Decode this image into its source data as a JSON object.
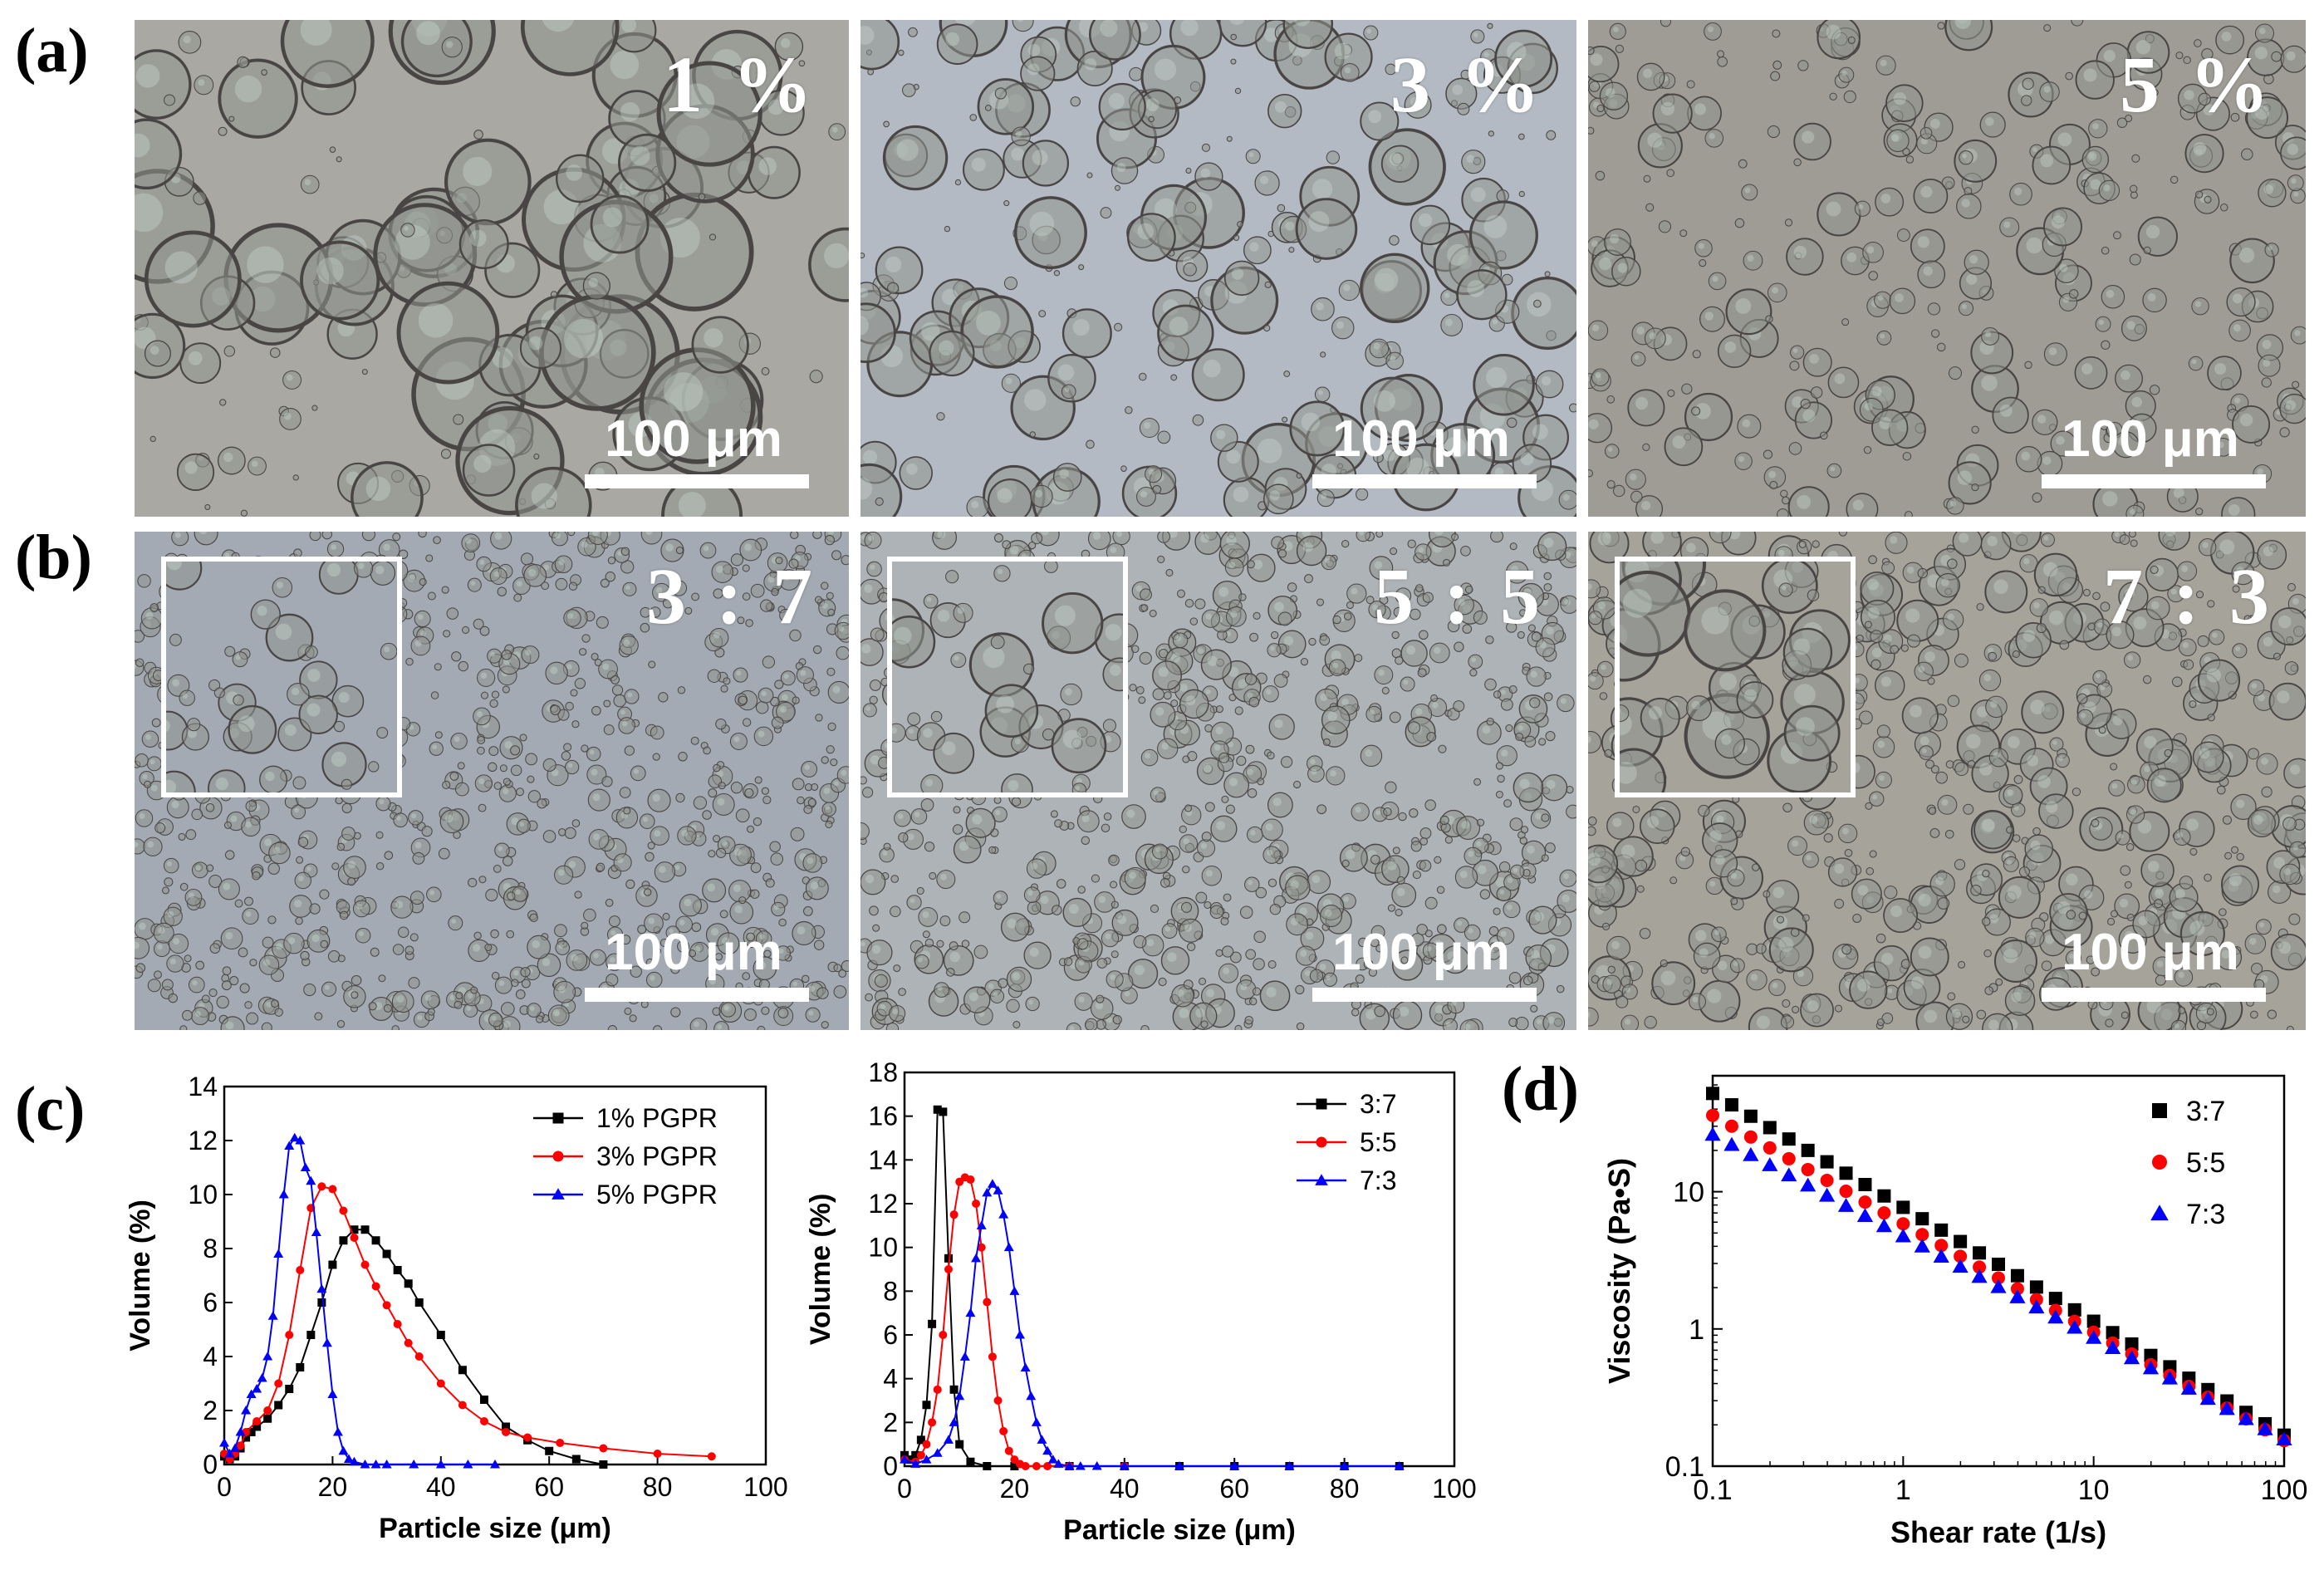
{
  "panel_labels": {
    "a": "(a)",
    "b": "(b)",
    "c": "(c)",
    "d": "(d)"
  },
  "micrographs_a": [
    {
      "label": "1 %",
      "scale": "100 μm",
      "tint": "#a9a8a3"
    },
    {
      "label": "3 %",
      "scale": "100 μm",
      "tint": "#b3bac3"
    },
    {
      "label": "5 %",
      "scale": "100 μm",
      "tint": "#9f9c95"
    }
  ],
  "micrographs_b": [
    {
      "label": "3 : 7",
      "scale": "100 μm",
      "tint": "#a3aab3"
    },
    {
      "label": "5 : 5",
      "scale": "100 μm",
      "tint": "#aeb3b7"
    },
    {
      "label": "7 : 3",
      "scale": "100 μm",
      "tint": "#a6a39b"
    }
  ],
  "chart_data": [
    {
      "type": "line",
      "xlabel": "Particle size (μm)",
      "ylabel": "Volume (%)",
      "xlim": [
        0,
        100
      ],
      "ylim": [
        0,
        14
      ],
      "xticks": [
        "0",
        "20",
        "40",
        "60",
        "80",
        "100"
      ],
      "yticks": [
        "0",
        "2",
        "4",
        "6",
        "8",
        "10",
        "12",
        "14"
      ],
      "legend_position": "top-right",
      "series": [
        {
          "name": "1% PGPR",
          "color": "#000000",
          "marker": "square",
          "x": [
            0,
            1,
            2,
            3,
            4,
            5,
            6,
            8,
            10,
            12,
            14,
            16,
            18,
            20,
            22,
            24,
            26,
            28,
            30,
            32,
            34,
            36,
            40,
            44,
            48,
            52,
            56,
            60,
            65,
            70
          ],
          "y": [
            0.3,
            0.2,
            0.3,
            0.6,
            1.0,
            1.2,
            1.4,
            1.7,
            2.2,
            2.8,
            3.6,
            4.8,
            6.0,
            7.4,
            8.3,
            8.7,
            8.7,
            8.3,
            7.8,
            7.2,
            6.7,
            6.0,
            4.8,
            3.5,
            2.4,
            1.4,
            0.9,
            0.5,
            0.2,
            0
          ]
        },
        {
          "name": "3% PGPR",
          "color": "#ff0000",
          "marker": "circle",
          "x": [
            0,
            1,
            2,
            3,
            4,
            6,
            8,
            10,
            12,
            14,
            16,
            18,
            20,
            22,
            24,
            26,
            28,
            30,
            32,
            34,
            36,
            40,
            44,
            48,
            52,
            56,
            62,
            70,
            80,
            90
          ],
          "y": [
            0.4,
            0.2,
            0.4,
            0.7,
            1.2,
            1.6,
            2.0,
            3.0,
            4.8,
            7.2,
            9.5,
            10.3,
            10.2,
            9.4,
            8.4,
            7.4,
            6.6,
            5.9,
            5.2,
            4.5,
            4.0,
            3.0,
            2.2,
            1.6,
            1.2,
            1.0,
            0.8,
            0.6,
            0.4,
            0.3
          ]
        },
        {
          "name": "5% PGPR",
          "color": "#0000ff",
          "marker": "triangle",
          "x": [
            0,
            1,
            2,
            3,
            4,
            5,
            6,
            7,
            8,
            9,
            10,
            11,
            12,
            13,
            14,
            15,
            16,
            17,
            18,
            19,
            20,
            21,
            22,
            23,
            24,
            26,
            28,
            30,
            35,
            40,
            45,
            50
          ],
          "y": [
            0.8,
            0.4,
            0.6,
            1.2,
            2.0,
            2.6,
            2.8,
            3.2,
            4.0,
            5.5,
            7.8,
            10.0,
            11.8,
            12.1,
            12.0,
            11.0,
            10.5,
            8.6,
            6.5,
            4.5,
            2.6,
            1.2,
            0.5,
            0.2,
            0.1,
            0,
            0,
            0,
            0,
            0,
            0,
            0
          ]
        }
      ]
    },
    {
      "type": "line",
      "xlabel": "Particle size (μm)",
      "ylabel": "Volume (%)",
      "xlim": [
        0,
        100
      ],
      "ylim": [
        0,
        18
      ],
      "xticks": [
        "0",
        "20",
        "40",
        "60",
        "80",
        "100"
      ],
      "yticks": [
        "0",
        "2",
        "4",
        "6",
        "8",
        "10",
        "12",
        "14",
        "16",
        "18"
      ],
      "legend_position": "top-right",
      "series": [
        {
          "name": "3:7",
          "color": "#000000",
          "marker": "square",
          "x": [
            0,
            1,
            2,
            3,
            4,
            5,
            6,
            7,
            8,
            9,
            10,
            12,
            15,
            20,
            30,
            40,
            50,
            60,
            70,
            80,
            90
          ],
          "y": [
            0.5,
            0.3,
            0.5,
            1.2,
            2.8,
            6.5,
            16.3,
            16.2,
            9.5,
            3.5,
            1.0,
            0.2,
            0,
            0,
            0,
            0,
            0,
            0,
            0,
            0,
            0
          ]
        },
        {
          "name": "5:5",
          "color": "#ff0000",
          "marker": "circle",
          "x": [
            0,
            2,
            3,
            4,
            5,
            6,
            7,
            8,
            9,
            10,
            11,
            12,
            13,
            14,
            15,
            16,
            17,
            18,
            19,
            20,
            21,
            22,
            24,
            26,
            30,
            40
          ],
          "y": [
            0.3,
            0.2,
            0.5,
            1.0,
            2.0,
            3.5,
            6.0,
            9.0,
            11.5,
            13.0,
            13.2,
            13.1,
            12.0,
            10.0,
            7.5,
            5.0,
            3.0,
            1.6,
            0.7,
            0.3,
            0.1,
            0,
            0,
            0,
            0,
            0
          ]
        },
        {
          "name": "7:3",
          "color": "#0000ff",
          "marker": "triangle",
          "x": [
            0,
            2,
            4,
            6,
            8,
            9,
            10,
            11,
            12,
            13,
            14,
            15,
            16,
            17,
            18,
            19,
            20,
            21,
            22,
            23,
            24,
            25,
            26,
            27,
            28,
            30,
            32,
            35,
            40,
            50,
            60,
            70,
            80,
            90
          ],
          "y": [
            0.3,
            0.1,
            0.3,
            0.6,
            1.2,
            2.0,
            3.2,
            5.0,
            7.0,
            9.5,
            11.0,
            12.5,
            12.9,
            12.6,
            11.5,
            10.0,
            8.0,
            6.0,
            4.5,
            3.2,
            2.0,
            1.2,
            0.7,
            0.3,
            0.1,
            0,
            0,
            0,
            0,
            0,
            0,
            0,
            0,
            0
          ]
        }
      ]
    },
    {
      "type": "scatter",
      "xlabel": "Shear rate (1/s)",
      "ylabel": "Viscosity (Pa•S)",
      "x_scale": "log",
      "y_scale": "log",
      "xlim": [
        0.1,
        100
      ],
      "ylim": [
        0.1,
        70
      ],
      "xticks": [
        "0.1",
        "1",
        "10",
        "100"
      ],
      "yticks": [
        "0.1",
        "1",
        "10"
      ],
      "legend_position": "top-right",
      "series": [
        {
          "name": "3:7",
          "color": "#000000",
          "marker": "square",
          "exponent": -0.83,
          "value_at_x_0_1": 52
        },
        {
          "name": "5:5",
          "color": "#ff0000",
          "marker": "circle",
          "exponent": -0.79,
          "value_at_x_0_1": 36
        },
        {
          "name": "7:3",
          "color": "#0000ff",
          "marker": "triangle",
          "exponent": -0.74,
          "value_at_x_0_1": 26
        }
      ]
    }
  ]
}
